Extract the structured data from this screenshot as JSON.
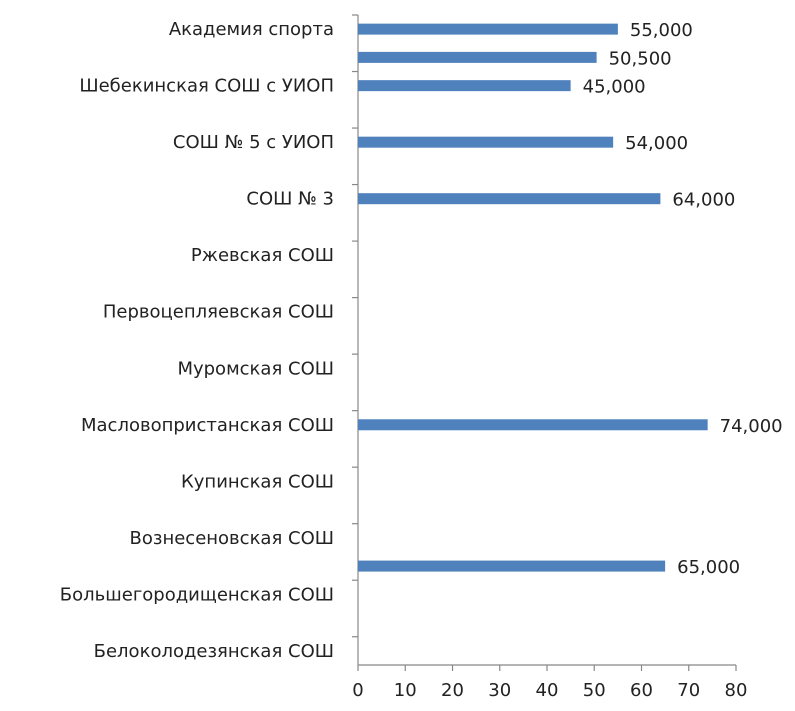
{
  "chart_data": {
    "type": "barh",
    "categories": [
      "Академия спорта",
      null,
      "Шебекинская СОШ с УИОП",
      null,
      "СОШ № 5 с УИОП",
      null,
      "СОШ № 3",
      null,
      "Ржевская СОШ",
      null,
      "Первоцепляевская СОШ",
      null,
      "Муромская СОШ",
      null,
      "Масловопристанская СОШ",
      null,
      "Купинская СОШ",
      null,
      "Вознесеновская СОШ",
      null,
      "Большегородищенская СОШ",
      null,
      "Белоколодезянская СОШ"
    ],
    "values": [
      55,
      50.5,
      45,
      null,
      54,
      null,
      64,
      null,
      null,
      null,
      null,
      null,
      null,
      null,
      74,
      null,
      null,
      null,
      null,
      65,
      null,
      null,
      null
    ],
    "value_labels": [
      "55,000",
      "50,500",
      "45,000",
      null,
      "54,000",
      null,
      "64,000",
      null,
      null,
      null,
      null,
      null,
      null,
      null,
      "74,000",
      null,
      null,
      null,
      null,
      "65,000",
      null,
      null,
      null
    ],
    "color": "#4f81bd",
    "xlim": [
      0,
      80
    ],
    "xticks": [
      0,
      10,
      20,
      30,
      40,
      50,
      60,
      70,
      80
    ]
  }
}
